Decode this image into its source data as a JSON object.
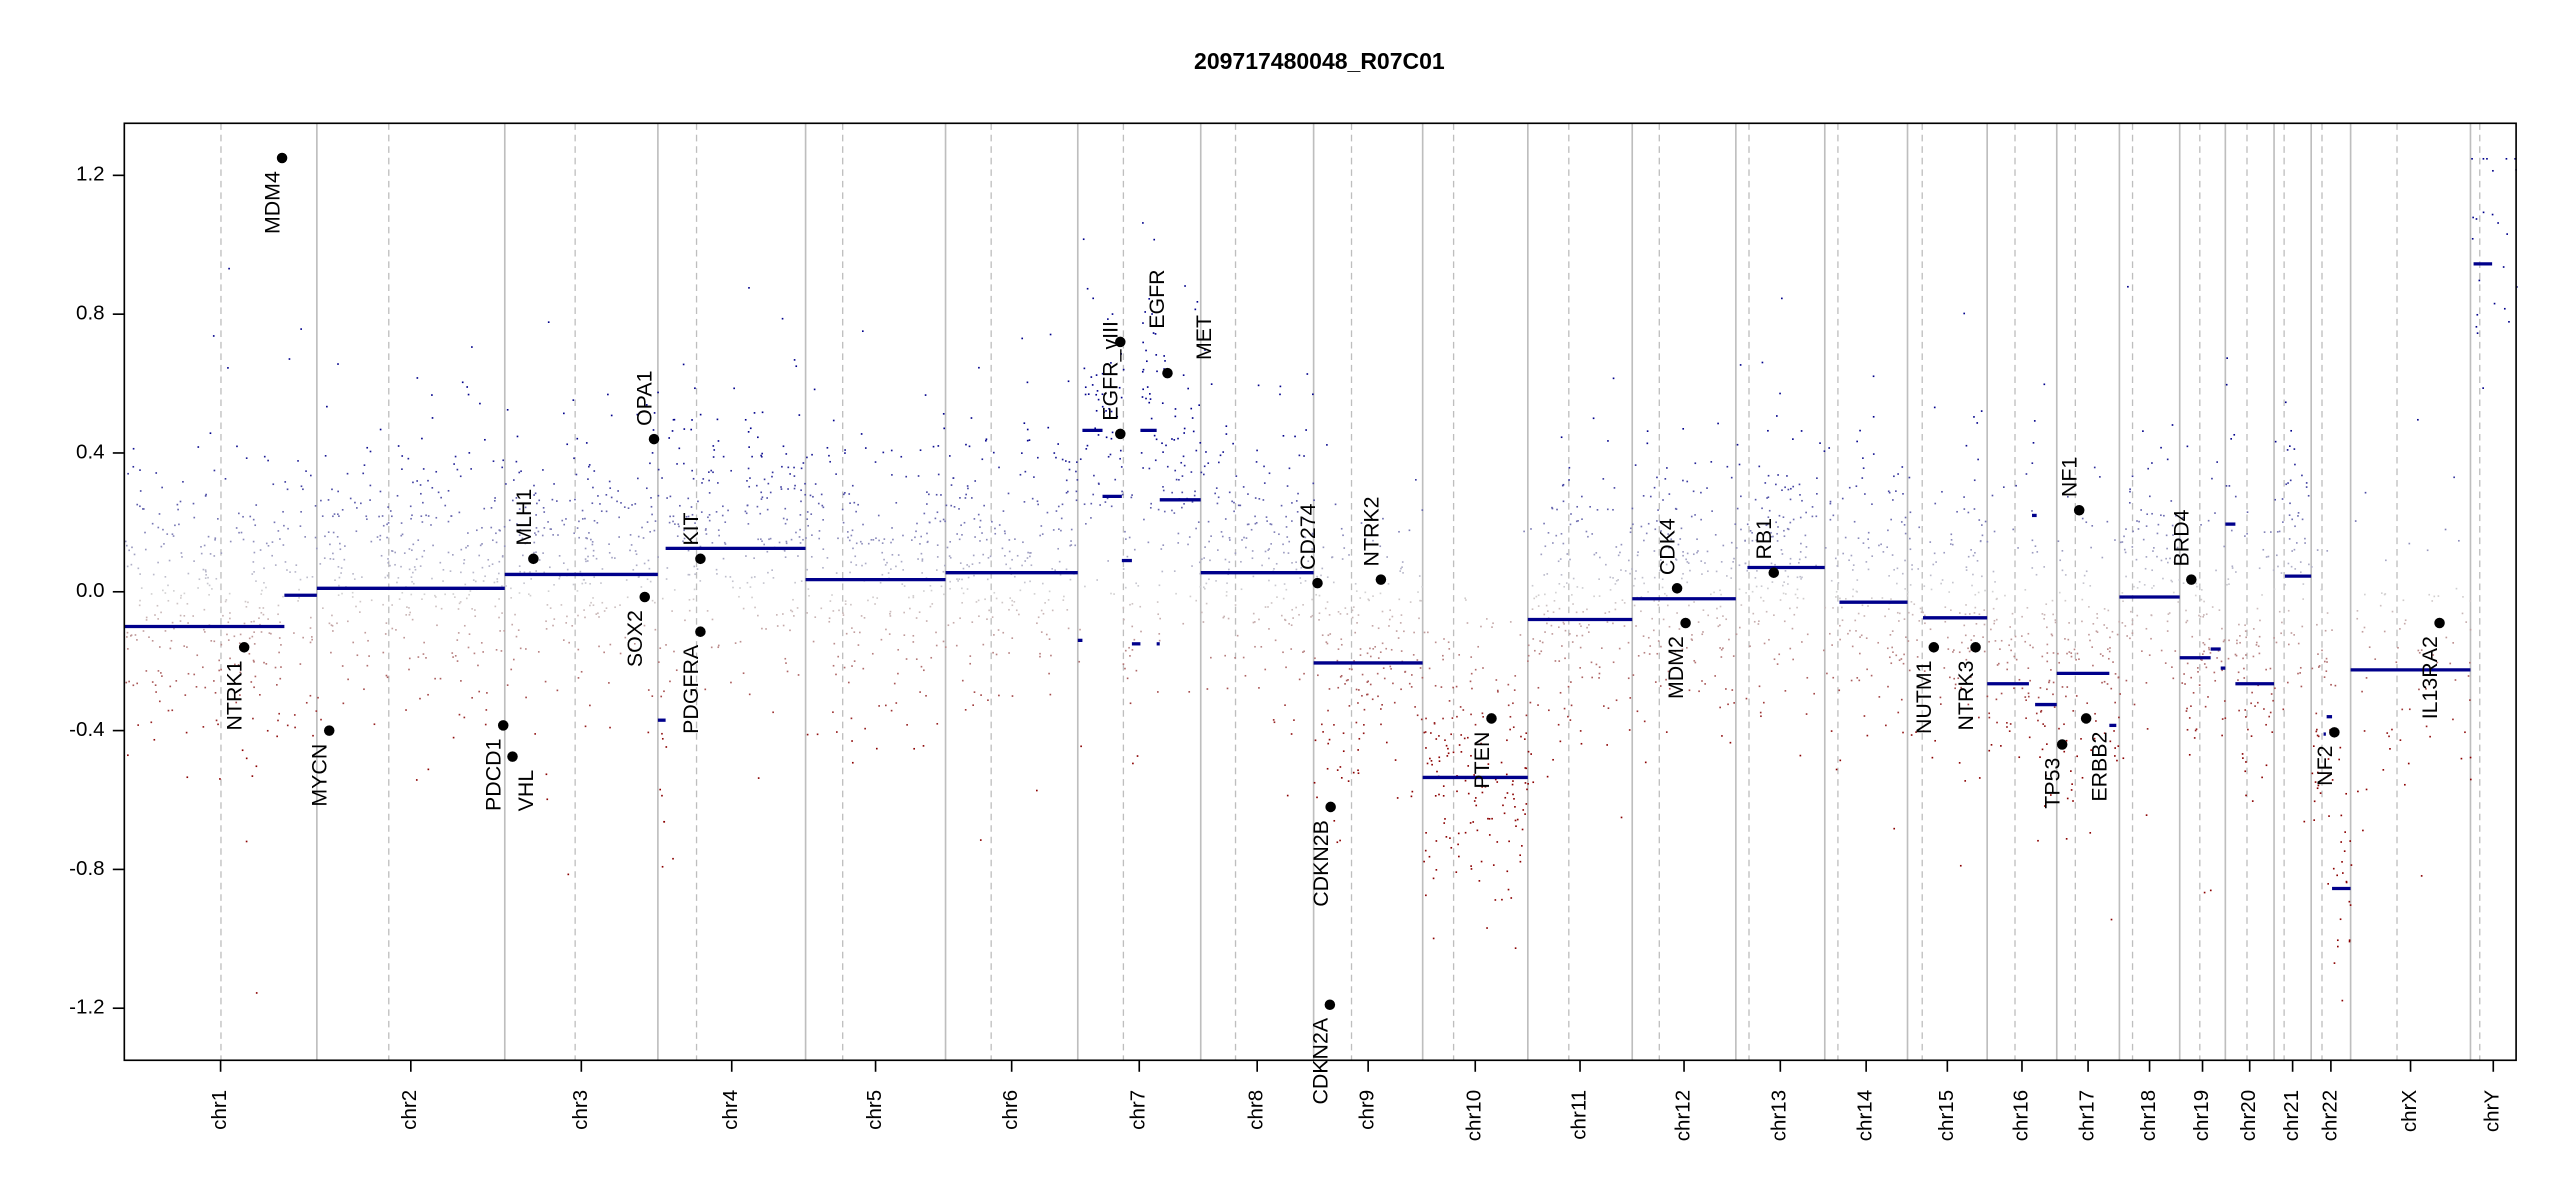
{
  "chart_data": {
    "type": "scatter",
    "title": "209717480048_R07C01",
    "xlabel": "",
    "ylabel": "",
    "ylim": [
      -1.35,
      1.35
    ],
    "y_ticks": [
      {
        "value": 1.2,
        "label": "1.2"
      },
      {
        "value": 0.8,
        "label": "0.8"
      },
      {
        "value": 0.4,
        "label": "0.4"
      },
      {
        "value": 0.0,
        "label": "0.0"
      },
      {
        "value": -0.4,
        "label": "-0.4"
      },
      {
        "value": -0.8,
        "label": "-0.8"
      },
      {
        "value": -1.2,
        "label": "-1.2"
      }
    ],
    "grid": false,
    "colors": {
      "gain": "#00008b",
      "neutral": "#d3d3d3",
      "loss": "#8b0000",
      "segment": "#00008b",
      "gene_point": "#000000",
      "chrom_boundary": "#bebebe",
      "centromere": "#bebebe"
    },
    "chromosomes": [
      {
        "name": "chr1",
        "length_mb": 249,
        "centromere_mb": 125
      },
      {
        "name": "chr2",
        "length_mb": 243,
        "centromere_mb": 93
      },
      {
        "name": "chr3",
        "length_mb": 198,
        "centromere_mb": 91
      },
      {
        "name": "chr4",
        "length_mb": 191,
        "centromere_mb": 50
      },
      {
        "name": "chr5",
        "length_mb": 181,
        "centromere_mb": 48
      },
      {
        "name": "chr6",
        "length_mb": 171,
        "centromere_mb": 59
      },
      {
        "name": "chr7",
        "length_mb": 159,
        "centromere_mb": 59
      },
      {
        "name": "chr8",
        "length_mb": 146,
        "centromere_mb": 45
      },
      {
        "name": "chr9",
        "length_mb": 141,
        "centromere_mb": 49
      },
      {
        "name": "chr10",
        "length_mb": 136,
        "centromere_mb": 40
      },
      {
        "name": "chr11",
        "length_mb": 135,
        "centromere_mb": 53
      },
      {
        "name": "chr12",
        "length_mb": 134,
        "centromere_mb": 35
      },
      {
        "name": "chr13",
        "length_mb": 115,
        "centromere_mb": 17
      },
      {
        "name": "chr14",
        "length_mb": 107,
        "centromere_mb": 17
      },
      {
        "name": "chr15",
        "length_mb": 103,
        "centromere_mb": 19
      },
      {
        "name": "chr16",
        "length_mb": 90,
        "centromere_mb": 36
      },
      {
        "name": "chr17",
        "length_mb": 81,
        "centromere_mb": 24
      },
      {
        "name": "chr18",
        "length_mb": 78,
        "centromere_mb": 17
      },
      {
        "name": "chr19",
        "length_mb": 59,
        "centromere_mb": 26
      },
      {
        "name": "chr20",
        "length_mb": 63,
        "centromere_mb": 28
      },
      {
        "name": "chr21",
        "length_mb": 48,
        "centromere_mb": 13
      },
      {
        "name": "chr22",
        "length_mb": 51,
        "centromere_mb": 14
      },
      {
        "name": "chrX",
        "length_mb": 155,
        "centromere_mb": 60
      },
      {
        "name": "chrY",
        "length_mb": 59,
        "centromere_mb": 12
      }
    ],
    "segments": [
      {
        "chr": "chr1",
        "start": 0,
        "end": 207,
        "value": -0.1
      },
      {
        "chr": "chr1",
        "start": 207,
        "end": 249,
        "value": -0.01
      },
      {
        "chr": "chr2",
        "start": 0,
        "end": 243,
        "value": 0.01
      },
      {
        "chr": "chr3",
        "start": 0,
        "end": 198,
        "value": 0.05
      },
      {
        "chr": "chr4",
        "start": 0,
        "end": 10,
        "value": -0.37
      },
      {
        "chr": "chr4",
        "start": 10,
        "end": 191,
        "value": 0.125
      },
      {
        "chr": "chr5",
        "start": 0,
        "end": 181,
        "value": 0.035
      },
      {
        "chr": "chr6",
        "start": 0,
        "end": 171,
        "value": 0.055
      },
      {
        "chr": "chr7",
        "start": 0,
        "end": 6,
        "value": -0.14
      },
      {
        "chr": "chr7",
        "start": 6,
        "end": 32,
        "value": 0.465
      },
      {
        "chr": "chr7",
        "start": 32,
        "end": 57,
        "value": 0.275
      },
      {
        "chr": "chr7",
        "start": 57,
        "end": 70,
        "value": 0.09
      },
      {
        "chr": "chr7",
        "start": 70,
        "end": 81,
        "value": -0.15
      },
      {
        "chr": "chr7",
        "start": 81,
        "end": 102,
        "value": 0.465
      },
      {
        "chr": "chr7",
        "start": 102,
        "end": 106,
        "value": -0.15
      },
      {
        "chr": "chr7",
        "start": 106,
        "end": 159,
        "value": 0.265
      },
      {
        "chr": "chr8",
        "start": 0,
        "end": 146,
        "value": 0.055
      },
      {
        "chr": "chr9",
        "start": 0,
        "end": 141,
        "value": -0.205
      },
      {
        "chr": "chr10",
        "start": 0,
        "end": 136,
        "value": -0.535
      },
      {
        "chr": "chr11",
        "start": 0,
        "end": 135,
        "value": -0.08
      },
      {
        "chr": "chr12",
        "start": 0,
        "end": 134,
        "value": -0.02
      },
      {
        "chr": "chr13",
        "start": 15,
        "end": 115,
        "value": 0.07
      },
      {
        "chr": "chr14",
        "start": 19,
        "end": 107,
        "value": -0.03
      },
      {
        "chr": "chr15",
        "start": 20,
        "end": 103,
        "value": -0.075
      },
      {
        "chr": "chr16",
        "start": 0,
        "end": 54,
        "value": -0.265
      },
      {
        "chr": "chr16",
        "start": 58,
        "end": 64,
        "value": 0.22
      },
      {
        "chr": "chr16",
        "start": 62,
        "end": 90,
        "value": -0.325
      },
      {
        "chr": "chr17",
        "start": 0,
        "end": 68,
        "value": -0.235
      },
      {
        "chr": "chr17",
        "start": 68,
        "end": 77,
        "value": -0.385
      },
      {
        "chr": "chr18",
        "start": 0,
        "end": 78,
        "value": -0.015
      },
      {
        "chr": "chr19",
        "start": 0,
        "end": 40,
        "value": -0.19
      },
      {
        "chr": "chr19",
        "start": 40,
        "end": 53,
        "value": -0.165
      },
      {
        "chr": "chr19",
        "start": 53,
        "end": 59,
        "value": -0.22
      },
      {
        "chr": "chr20",
        "start": 0,
        "end": 13,
        "value": 0.195
      },
      {
        "chr": "chr20",
        "start": 13,
        "end": 63,
        "value": -0.265
      },
      {
        "chr": "chr21",
        "start": 14,
        "end": 48,
        "value": 0.045
      },
      {
        "chr": "chr22",
        "start": 16,
        "end": 19,
        "value": -0.41
      },
      {
        "chr": "chr22",
        "start": 20,
        "end": 27,
        "value": -0.36
      },
      {
        "chr": "chr22",
        "start": 27,
        "end": 51,
        "value": -0.855
      },
      {
        "chr": "chrX",
        "start": 0,
        "end": 155,
        "value": -0.225
      },
      {
        "chr": "chrY",
        "start": 4,
        "end": 28,
        "value": 0.945
      }
    ],
    "genes": [
      {
        "name": "MDM4",
        "chr": "chr1",
        "pos": 204,
        "value": 1.25
      },
      {
        "name": "NTRK1",
        "chr": "chr1",
        "pos": 155,
        "value": -0.16
      },
      {
        "name": "MYCN",
        "chr": "chr2",
        "pos": 16,
        "value": -0.4
      },
      {
        "name": "PDCD1",
        "chr": "chr2",
        "pos": 241,
        "value": -0.385
      },
      {
        "name": "VHL",
        "chr": "chr3",
        "pos": 10,
        "value": -0.475
      },
      {
        "name": "MLH1",
        "chr": "chr3",
        "pos": 37,
        "value": 0.095
      },
      {
        "name": "SOX2",
        "chr": "chr3",
        "pos": 181,
        "value": -0.015
      },
      {
        "name": "OPA1",
        "chr": "chr3",
        "pos": 193,
        "value": 0.44
      },
      {
        "name": "KIT",
        "chr": "chr4",
        "pos": 55,
        "value": 0.095
      },
      {
        "name": "PDGFRA",
        "chr": "chr4",
        "pos": 55,
        "value": -0.115
      },
      {
        "name": "EGFR_vIII",
        "chr": "chr7",
        "pos": 55,
        "value": 0.455
      },
      {
        "name": "EGFR",
        "chr": "chr7",
        "pos": 55,
        "value": 0.72
      },
      {
        "name": "MET",
        "chr": "chr7",
        "pos": 116,
        "value": 0.63
      },
      {
        "name": "CD274",
        "chr": "chr9",
        "pos": 5,
        "value": 0.025
      },
      {
        "name": "CDKN2A",
        "chr": "chr9",
        "pos": 21,
        "value": -1.19
      },
      {
        "name": "CDKN2B",
        "chr": "chr9",
        "pos": 22,
        "value": -0.62
      },
      {
        "name": "NTRK2",
        "chr": "chr9",
        "pos": 87,
        "value": 0.035
      },
      {
        "name": "PTEN",
        "chr": "chr10",
        "pos": 89,
        "value": -0.365
      },
      {
        "name": "CDK4",
        "chr": "chr12",
        "pos": 58,
        "value": 0.01
      },
      {
        "name": "MDM2",
        "chr": "chr12",
        "pos": 69,
        "value": -0.09
      },
      {
        "name": "RB1",
        "chr": "chr13",
        "pos": 49,
        "value": 0.055
      },
      {
        "name": "NUTM1",
        "chr": "chr15",
        "pos": 34,
        "value": -0.16
      },
      {
        "name": "NTRK3",
        "chr": "chr15",
        "pos": 88,
        "value": -0.16
      },
      {
        "name": "TP53",
        "chr": "chr17",
        "pos": 7,
        "value": -0.44
      },
      {
        "name": "NF1",
        "chr": "chr17",
        "pos": 29,
        "value": 0.235
      },
      {
        "name": "ERBB2",
        "chr": "chr17",
        "pos": 38,
        "value": -0.365
      },
      {
        "name": "BRD4",
        "chr": "chr19",
        "pos": 15,
        "value": 0.035
      },
      {
        "name": "NF2",
        "chr": "chr22",
        "pos": 30,
        "value": -0.405
      },
      {
        "name": "IL13RA2",
        "chr": "chrX",
        "pos": 115,
        "value": -0.09
      }
    ]
  }
}
